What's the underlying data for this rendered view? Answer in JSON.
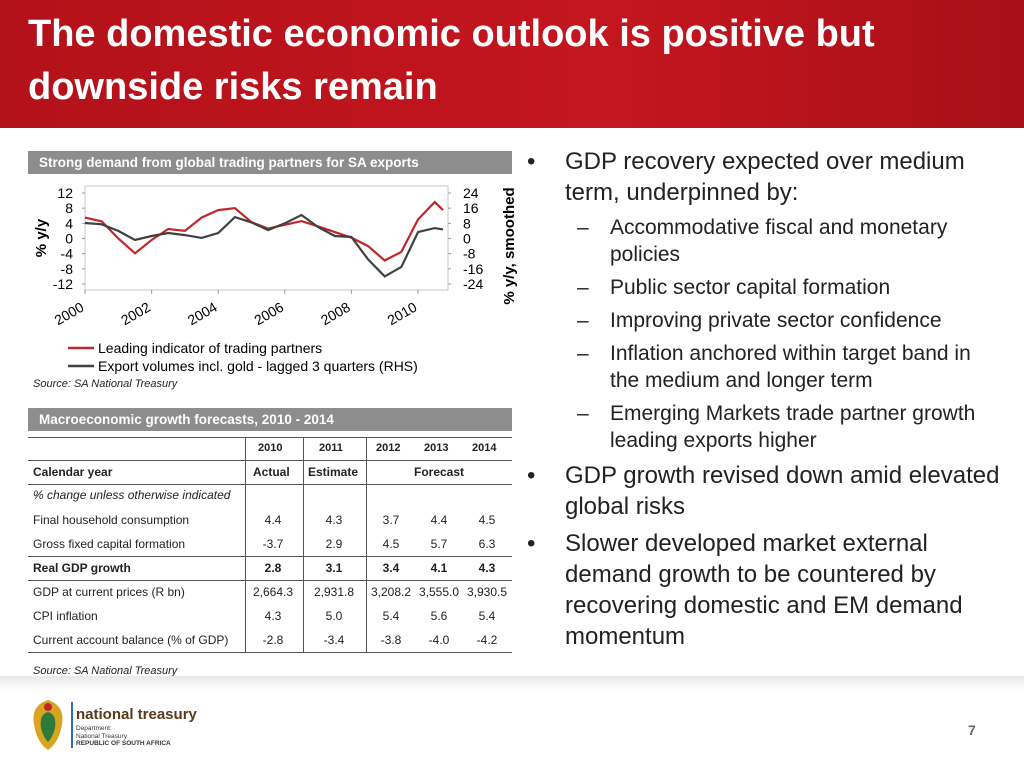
{
  "header": {
    "title": "The domestic economic outlook is positive but downside risks remain"
  },
  "chart_panel": {
    "title": "Strong demand from global trading partners for SA exports"
  },
  "chart_data": {
    "type": "line",
    "x": [
      2000,
      2000.5,
      2001,
      2001.5,
      2002,
      2002.5,
      2003,
      2003.5,
      2004,
      2004.5,
      2005,
      2005.5,
      2006,
      2006.5,
      2007,
      2007.5,
      2008,
      2008.5,
      2009,
      2009.5,
      2010,
      2010.5,
      2010.75
    ],
    "series": [
      {
        "name": "Leading indicator of trading partners",
        "color": "#c0272d",
        "values": [
          5.5,
          4.5,
          0.0,
          -3.9,
          -0.4,
          2.5,
          2.0,
          5.5,
          7.5,
          8.0,
          4.3,
          2.6,
          3.6,
          4.6,
          3.2,
          1.7,
          0.2,
          -2.0,
          -5.8,
          -3.5,
          5.0,
          9.6,
          7.5
        ]
      },
      {
        "name": "Export volumes incl. gold - lagged 3 quarters (RHS)",
        "color": "#404040",
        "axis": "y2",
        "values": [
          8.2,
          7.5,
          4.0,
          -0.8,
          1.3,
          2.9,
          1.8,
          0.3,
          2.9,
          11.3,
          8.5,
          4.5,
          8.0,
          12.4,
          6.0,
          1.3,
          0.8,
          -11.0,
          -20.0,
          -15.0,
          3.4,
          5.5,
          4.8
        ]
      }
    ],
    "xlim": [
      2000,
      2010.9
    ],
    "xticks": [
      2000,
      2002,
      2004,
      2006,
      2008,
      2010
    ],
    "ylim": [
      -12,
      12
    ],
    "yticks": [
      12,
      8,
      4,
      0,
      -4,
      -8,
      -12
    ],
    "y2lim": [
      -24,
      24
    ],
    "y2ticks": [
      24,
      16,
      8,
      0,
      -8,
      -16,
      -24
    ],
    "ylabel": "% y/y",
    "y2label": "% y/y, smoothed",
    "source": "Source: SA National Treasury"
  },
  "table": {
    "title": "Macroeconomic growth forecasts, 2010 - 2014",
    "years": [
      "2010",
      "2011",
      "2012",
      "2013",
      "2014"
    ],
    "calendar": {
      "label": "Calendar year",
      "actual": "Actual",
      "estimate": "Estimate",
      "forecast": "Forecast"
    },
    "note": "% change unless otherwise indicated",
    "rows": [
      [
        "Final household consumption",
        "4.4",
        "4.3",
        "3.7",
        "4.4",
        "4.5"
      ],
      [
        "Gross fixed capital formation",
        "-3.7",
        "2.9",
        "4.5",
        "5.7",
        "6.3"
      ],
      [
        "Real GDP growth",
        "2.8",
        "3.1",
        "3.4",
        "4.1",
        "4.3"
      ],
      [
        "GDP at current prices (R bn)",
        "2,664.3",
        "2,931.8",
        "3,208.2",
        "3,555.0",
        "3,930.5"
      ],
      [
        "CPI inflation",
        "4.3",
        "5.0",
        "5.4",
        "5.6",
        "5.4"
      ],
      [
        "Current account balance (% of GDP)",
        "-2.8",
        "-3.4",
        "-3.8",
        "-4.0",
        "-4.2"
      ]
    ],
    "source": "Source: SA National Treasury"
  },
  "bullets": [
    {
      "text": "GDP recovery expected over medium term, underpinned by:",
      "sub": [
        "Accommodative fiscal and monetary policies",
        "Public sector capital formation",
        "Improving private sector confidence",
        "Inflation anchored within target band in the medium and longer term",
        "Emerging Markets trade partner growth leading exports higher"
      ]
    },
    {
      "text": "GDP growth revised down amid elevated global risks",
      "sub": []
    },
    {
      "text": "Slower developed market external demand growth to be countered by recovering domestic and EM demand momentum",
      "sub": []
    }
  ],
  "footer": {
    "logo_name": "national treasury",
    "department": [
      "Department:",
      "National Treasury",
      "REPUBLIC OF SOUTH AFRICA"
    ],
    "page": "7"
  }
}
